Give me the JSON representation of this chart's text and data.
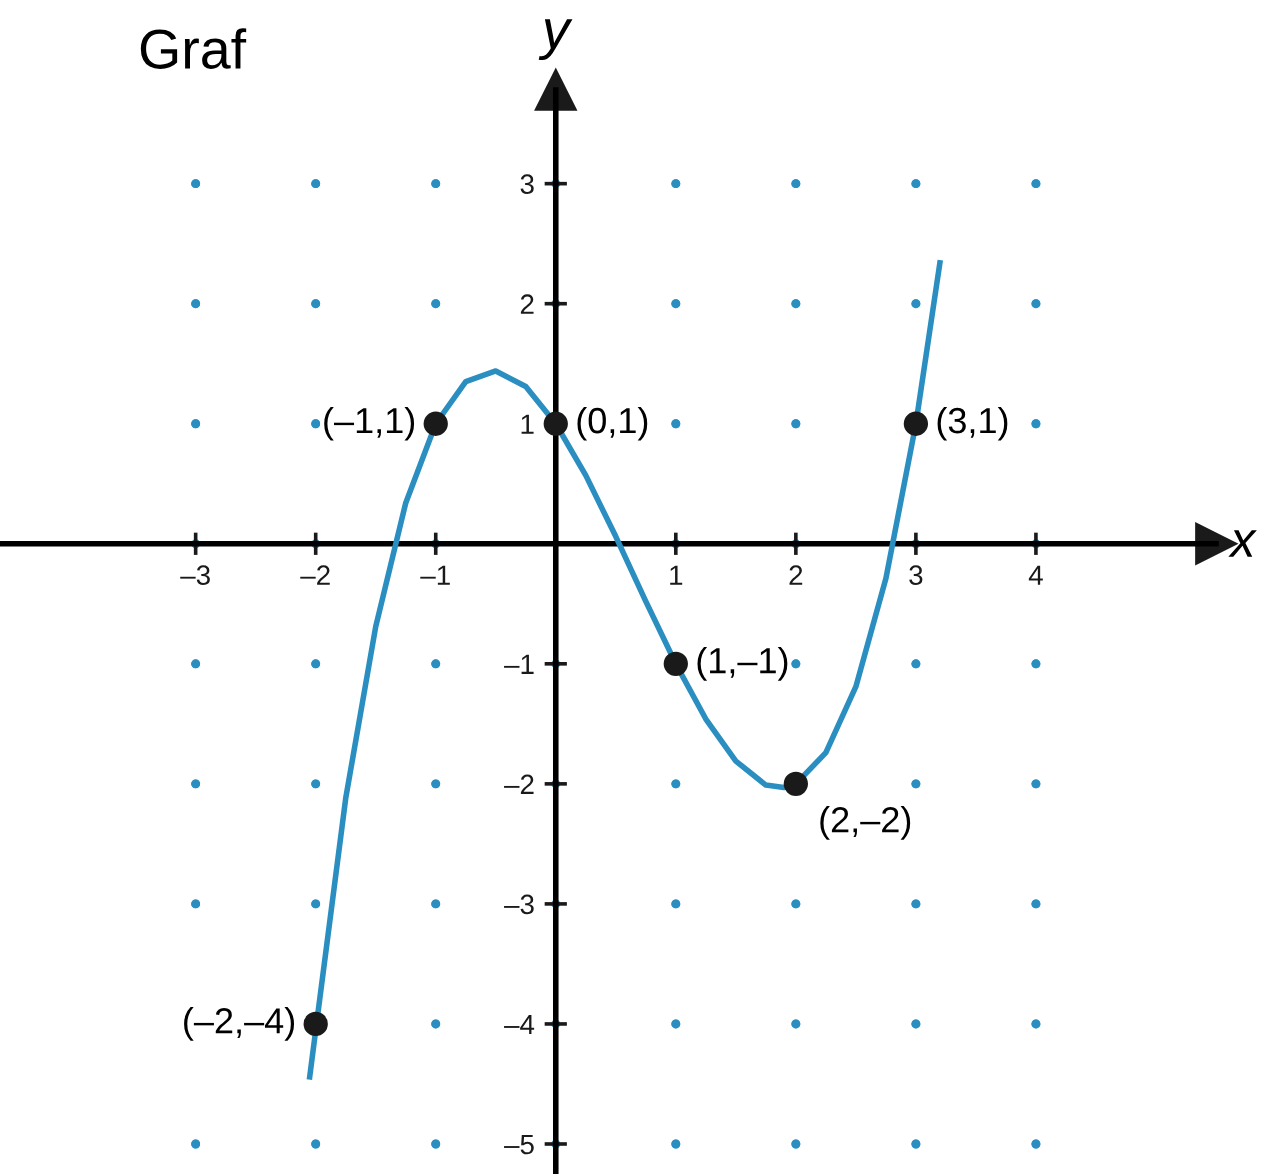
{
  "chart_data": {
    "type": "line",
    "title": "Graf",
    "xlabel": "x",
    "ylabel": "y",
    "xlim": [
      -4.63,
      6.05
    ],
    "ylim": [
      -5.25,
      4.53
    ],
    "xticks": [
      {
        "value": -3,
        "label": "–3"
      },
      {
        "value": -2,
        "label": "–2"
      },
      {
        "value": -1,
        "label": "–1"
      },
      1,
      2,
      3,
      4
    ],
    "yticks": [
      {
        "value": -5,
        "label": "–5"
      },
      {
        "value": -4,
        "label": "–4"
      },
      {
        "value": -3,
        "label": "–3"
      },
      {
        "value": -2,
        "label": "–2"
      },
      {
        "value": -1,
        "label": "–1"
      },
      1,
      2,
      3
    ],
    "grid": true,
    "legend": false,
    "series": [
      {
        "color": "#2a8fc0",
        "marker": "none",
        "x": [
          -2.05,
          -1.75,
          -1.5,
          -1.25,
          -1,
          -0.75,
          -0.5,
          -0.25,
          0,
          0.25,
          0.5,
          0.75,
          1,
          1.25,
          1.5,
          1.75,
          1.9,
          2,
          2.25,
          2.5,
          2.75,
          3,
          3.2
        ],
        "values": [
          -4.44,
          -2.12,
          -0.69,
          0.34,
          1,
          1.35,
          1.44,
          1.31,
          1,
          0.57,
          0.06,
          -0.48,
          -1,
          -1.46,
          -1.81,
          -2.01,
          -2.03,
          -2,
          -1.74,
          -1.19,
          -0.29,
          1,
          2.34
        ]
      },
      {
        "type": "scatter",
        "color": "#1a1a1a",
        "marker": "circle",
        "x": [
          -1,
          0,
          1,
          2,
          3,
          -2
        ],
        "values": [
          1,
          1,
          -1,
          -2,
          1,
          -4
        ]
      }
    ],
    "annotations": [
      {
        "text": "(–1,1)",
        "x": -1,
        "y": 1
      },
      {
        "text": "(0,1)",
        "x": 0,
        "y": 1
      },
      {
        "text": "(1,–1)",
        "x": 1,
        "y": -1
      },
      {
        "text": "(2,–2)",
        "x": 2,
        "y": -2
      },
      {
        "text": "(3,1)",
        "x": 3,
        "y": 1
      },
      {
        "text": "(–2,–4)",
        "x": -2,
        "y": -4
      }
    ]
  }
}
